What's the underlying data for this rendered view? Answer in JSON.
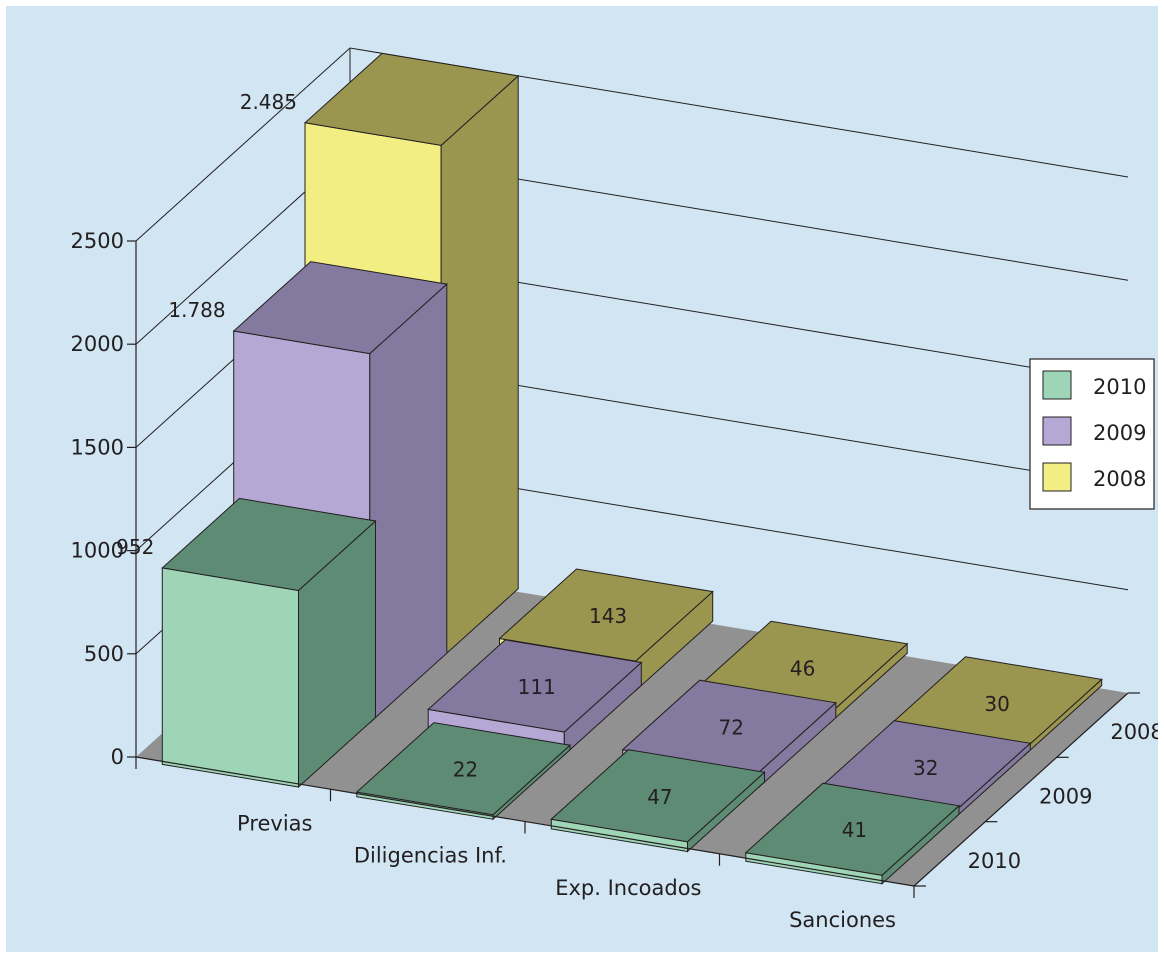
{
  "chart_data": {
    "type": "bar",
    "categories": [
      "Previas",
      "Diligencias Inf.",
      "Exp. Incoados",
      "Sanciones"
    ],
    "series": [
      {
        "name": "2010",
        "values": [
          952,
          22,
          47,
          41
        ],
        "labels": [
          "952",
          "22",
          "47",
          "41"
        ]
      },
      {
        "name": "2009",
        "values": [
          1788,
          111,
          72,
          32
        ],
        "labels": [
          "1.788",
          "111",
          "72",
          "32"
        ]
      },
      {
        "name": "2008",
        "values": [
          2485,
          143,
          46,
          30
        ],
        "labels": [
          "2.485",
          "143",
          "46",
          "30"
        ]
      }
    ],
    "depth_labels": [
      "2008",
      "2009",
      "2010"
    ],
    "y_ticks": [
      "0",
      "500",
      "1000",
      "1500",
      "2000",
      "2500"
    ],
    "ylim": [
      0,
      2500
    ],
    "legend_position": "right",
    "colors": {
      "background": "#d1e5f3",
      "floor": "#919191",
      "2010": {
        "front": "#9fd5b7",
        "side": "#5d8b73",
        "top": "#5d8b73"
      },
      "2009": {
        "front": "#b6a8d5",
        "side": "#84799f",
        "top": "#84799f"
      },
      "2008": {
        "front": "#f2ee84",
        "side": "#9a9650",
        "top": "#9a9650"
      }
    }
  }
}
